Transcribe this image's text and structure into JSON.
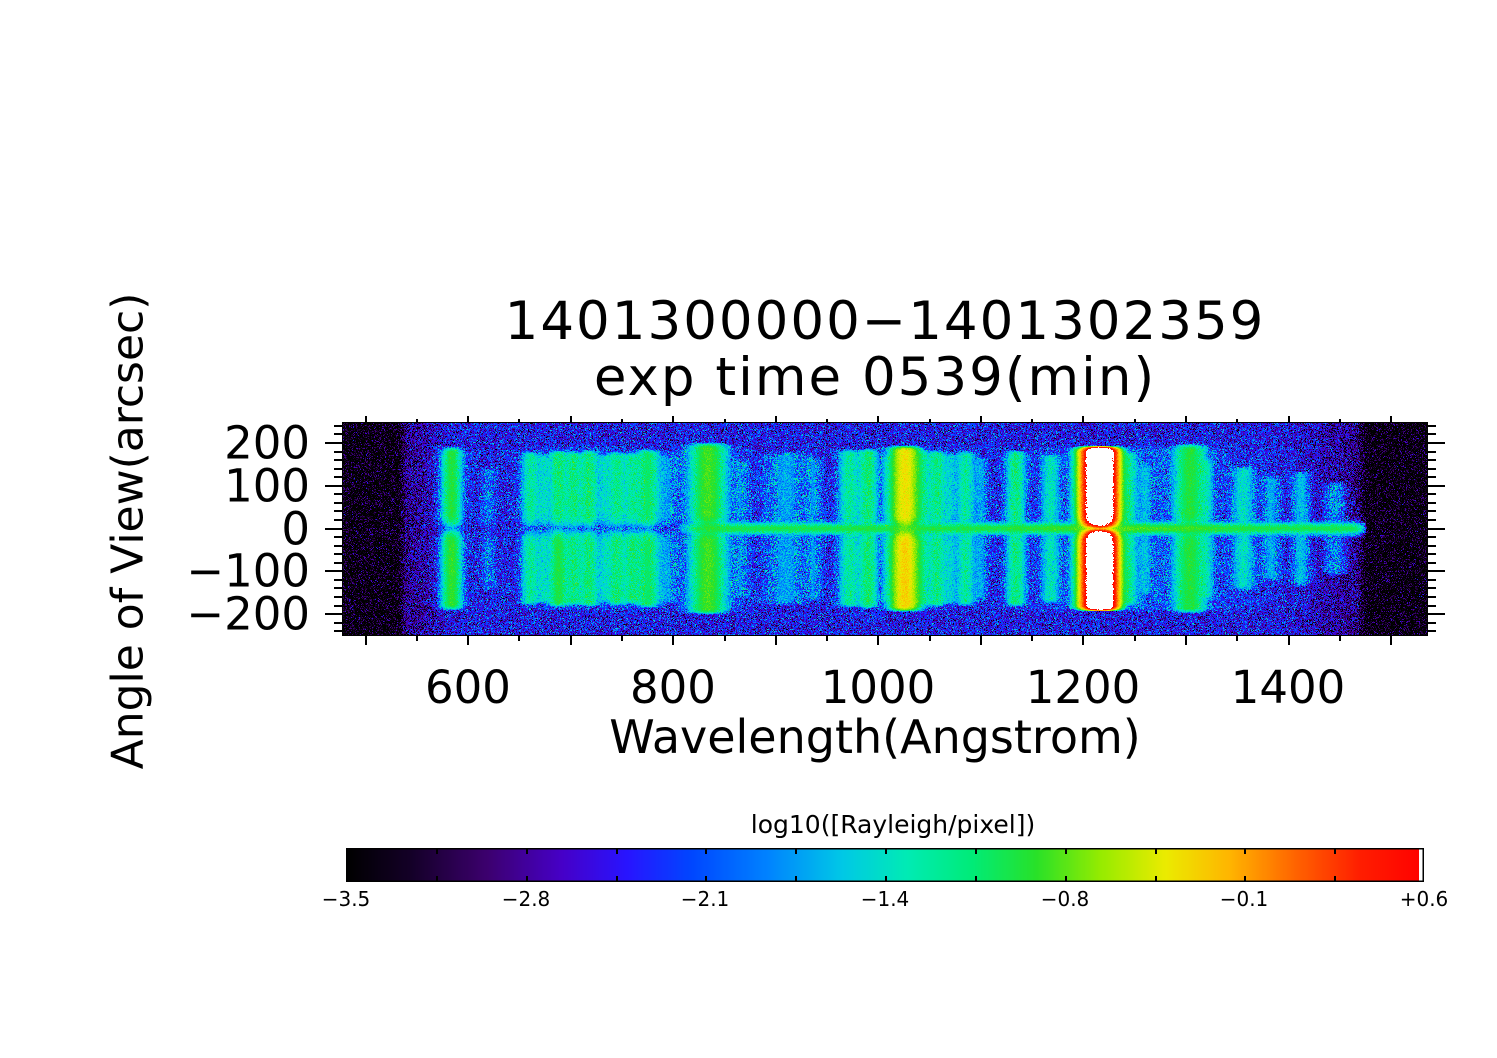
{
  "title": {
    "line1": "1401300000−1401302359",
    "line2": "exp time 0539(min)"
  },
  "axes": {
    "x": {
      "label": "Wavelength(Angstrom)",
      "tick_labels": [
        "600",
        "800",
        "1000",
        "1200",
        "1400"
      ]
    },
    "y": {
      "label": "Angle of View(arcsec)",
      "tick_labels": [
        "200",
        "100",
        "0",
        "−100",
        "−200"
      ]
    }
  },
  "colorbar": {
    "title": "log10([Rayleigh/pixel])",
    "tick_labels": [
      "−3.5",
      "−2.8",
      "−2.1",
      "−1.4",
      "−0.8",
      "−0.1",
      "+0.6"
    ],
    "min": -3.5,
    "max": 0.6,
    "saturation_color": "#ffffff"
  },
  "chart_data": {
    "type": "heatmap",
    "title": "1401300000-1401302359 exp time 0539(min)",
    "xlabel": "Wavelength(Angstrom)",
    "ylabel": "Angle of View(arcsec)",
    "value_label": "log10([Rayleigh/pixel])",
    "xlim": [
      477,
      1536
    ],
    "ylim": [
      -251,
      249
    ],
    "value_range": [
      -3.5,
      0.6
    ],
    "x_ticks_labeled": [
      600,
      800,
      1000,
      1200,
      1400
    ],
    "x_ticks_major_step": 100,
    "x_ticks_minor_step": 50,
    "y_ticks_labeled": [
      200,
      100,
      0,
      -100,
      -200
    ],
    "y_ticks_major_step": 100,
    "y_ticks_minor_step": 20,
    "data_wavelength_range": [
      531.5,
      1476.5
    ],
    "background_log10_level": -2.52,
    "background_noise_sigma": 0.4,
    "edge_darkening": [
      {
        "wavelength": 548,
        "sigma": 26,
        "depth": 0.45
      },
      {
        "wavelength": 1468,
        "sigma": 50,
        "depth": 0.5
      }
    ],
    "scatter_halos": [
      {
        "wavelength": 584,
        "sigma": 14,
        "log10_level": -2.5
      },
      {
        "wavelength": 720,
        "sigma": 55,
        "log10_level": -2.6
      },
      {
        "wavelength": 834,
        "sigma": 28,
        "log10_level": -2.25
      },
      {
        "wavelength": 1026,
        "sigma": 22,
        "log10_level": -2.45
      },
      {
        "wavelength": 1250,
        "sigma": 95,
        "log10_level": -2.35
      }
    ],
    "center_streak": {
      "y_arcsec": 0,
      "log10_level": -1.0,
      "onset_wavelength": 800,
      "half_width_arcsec": 10
    },
    "slit_gap": {
      "y_arcsec": 0,
      "half_width_arcsec": 17,
      "default_depth": 0.85
    },
    "emission_lines": [
      {
        "wavelength": 584,
        "log10_peak": -0.95,
        "sigma": 5,
        "extent": 185,
        "lower_boost": 1.15
      },
      {
        "wavelength": 620,
        "log10_peak": -2.1,
        "sigma": 4,
        "extent": 140
      },
      {
        "wavelength": 661,
        "log10_peak": -1.3,
        "sigma": 5,
        "extent": 175
      },
      {
        "wavelength": 674,
        "log10_peak": -1.55,
        "sigma": 4,
        "extent": 170
      },
      {
        "wavelength": 688,
        "log10_peak": -1.15,
        "sigma": 5,
        "extent": 178,
        "lower_boost": 1.5
      },
      {
        "wavelength": 703,
        "log10_peak": -1.2,
        "sigma": 5,
        "extent": 175
      },
      {
        "wavelength": 718,
        "log10_peak": -1.15,
        "sigma": 5,
        "extent": 178
      },
      {
        "wavelength": 733,
        "log10_peak": -1.6,
        "sigma": 4,
        "extent": 170
      },
      {
        "wavelength": 745,
        "log10_peak": -1.25,
        "sigma": 5,
        "extent": 175,
        "lower_boost": 1.2
      },
      {
        "wavelength": 760,
        "log10_peak": -1.3,
        "sigma": 5,
        "extent": 172,
        "lower_boost": 1.3
      },
      {
        "wavelength": 775,
        "log10_peak": -1.1,
        "sigma": 6,
        "extent": 180
      },
      {
        "wavelength": 792,
        "log10_peak": -1.9,
        "sigma": 8,
        "extent": 170
      },
      {
        "wavelength": 834,
        "log10_peak": -0.85,
        "sigma": 9,
        "extent": 195
      },
      {
        "wavelength": 866,
        "log10_peak": -2.0,
        "sigma": 5,
        "extent": 160
      },
      {
        "wavelength": 910,
        "log10_peak": -1.85,
        "sigma": 12,
        "extent": 175
      },
      {
        "wavelength": 937,
        "log10_peak": -1.95,
        "sigma": 5,
        "extent": 165
      },
      {
        "wavelength": 972,
        "log10_peak": -1.3,
        "sigma": 6,
        "extent": 180
      },
      {
        "wavelength": 990,
        "log10_peak": -1.12,
        "sigma": 5,
        "extent": 182
      },
      {
        "wavelength": 1010,
        "log10_peak": -1.7,
        "sigma": 4,
        "extent": 170
      },
      {
        "wavelength": 1026,
        "log10_peak": -0.35,
        "sigma": 7,
        "extent": 188,
        "lower_boost": 1.2
      },
      {
        "wavelength": 1042,
        "log10_peak": -1.3,
        "sigma": 5,
        "extent": 178
      },
      {
        "wavelength": 1057,
        "log10_peak": -1.2,
        "sigma": 5,
        "extent": 178
      },
      {
        "wavelength": 1070,
        "log10_peak": -1.6,
        "sigma": 4,
        "extent": 172
      },
      {
        "wavelength": 1085,
        "log10_peak": -1.3,
        "sigma": 5,
        "extent": 176
      },
      {
        "wavelength": 1100,
        "log10_peak": -1.85,
        "sigma": 4,
        "extent": 165
      },
      {
        "wavelength": 1134,
        "log10_peak": -1.18,
        "sigma": 5,
        "extent": 178
      },
      {
        "wavelength": 1168,
        "log10_peak": -1.45,
        "sigma": 5,
        "extent": 170
      },
      {
        "wavelength": 1200,
        "log10_peak": -1.0,
        "sigma": 6,
        "extent": 185
      },
      {
        "wavelength": 1216,
        "log10_peak": 1.35,
        "sigma": 7,
        "extent": 186,
        "gap_depth": 0.97
      },
      {
        "wavelength": 1243,
        "log10_peak": -1.25,
        "sigma": 5,
        "extent": 176
      },
      {
        "wavelength": 1260,
        "log10_peak": -1.8,
        "sigma": 4,
        "extent": 150
      },
      {
        "wavelength": 1304,
        "log10_peak": -0.95,
        "sigma": 8,
        "extent": 192
      },
      {
        "wavelength": 1320,
        "log10_peak": -1.6,
        "sigma": 4,
        "extent": 160
      },
      {
        "wavelength": 1356,
        "log10_peak": -1.5,
        "sigma": 6,
        "extent": 140
      },
      {
        "wavelength": 1383,
        "log10_peak": -1.8,
        "sigma": 5,
        "extent": 120
      },
      {
        "wavelength": 1412,
        "log10_peak": -1.7,
        "sigma": 5,
        "extent": 130
      },
      {
        "wavelength": 1445,
        "log10_peak": -1.9,
        "sigma": 6,
        "extent": 105
      }
    ],
    "colormap_stops": [
      [
        0.0,
        "#000000"
      ],
      [
        0.06,
        "#140028"
      ],
      [
        0.13,
        "#3c006e"
      ],
      [
        0.2,
        "#4600c8"
      ],
      [
        0.26,
        "#2814ff"
      ],
      [
        0.32,
        "#0046ff"
      ],
      [
        0.39,
        "#0082ff"
      ],
      [
        0.46,
        "#00c8e6"
      ],
      [
        0.52,
        "#00ebb4"
      ],
      [
        0.58,
        "#00eb78"
      ],
      [
        0.64,
        "#28e128"
      ],
      [
        0.7,
        "#96eb00"
      ],
      [
        0.76,
        "#ebeb00"
      ],
      [
        0.82,
        "#ffb400"
      ],
      [
        0.88,
        "#ff6400"
      ],
      [
        0.94,
        "#ff1e00"
      ],
      [
        1.0,
        "#ff0000"
      ]
    ]
  }
}
